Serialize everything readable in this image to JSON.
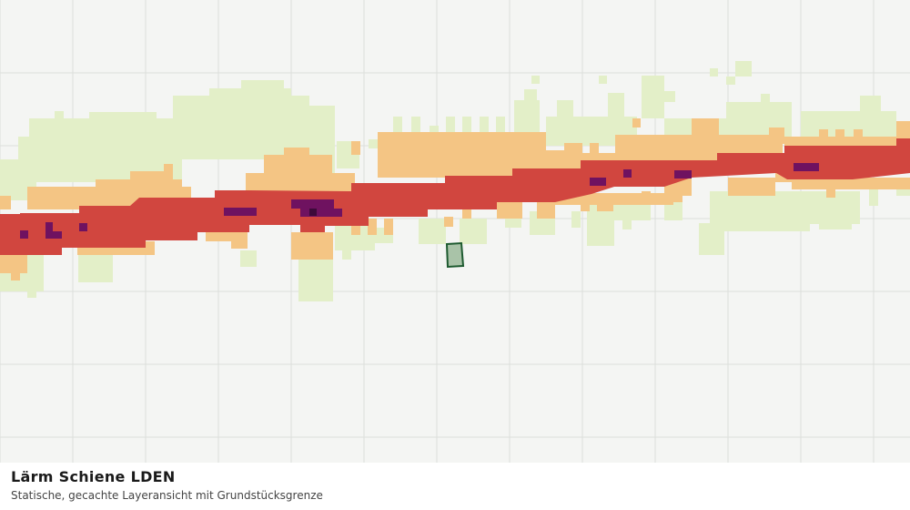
{
  "map": {
    "title": "Lärm Schiene LDEN",
    "subtitle": "Statische, gecachte Layeransicht mit Grundstücksgrenze"
  }
}
